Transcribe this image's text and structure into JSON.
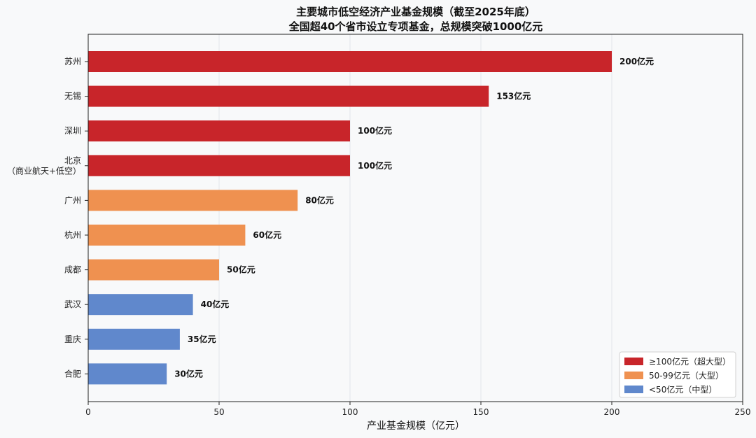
{
  "chart_data": {
    "type": "bar",
    "orientation": "horizontal",
    "title": "主要城市低空经济产业基金规模（截至2025年底）",
    "subtitle": "全国超40个省市设立专项基金，总规模突破1000亿元",
    "xlabel": "产业基金规模（亿元）",
    "ylabel": "",
    "xlim": [
      0,
      250
    ],
    "xticks": [
      0,
      50,
      100,
      150,
      200,
      250
    ],
    "grid": "vertical",
    "legend_position": "bottom-right",
    "categories": [
      "苏州",
      "无锡",
      "深圳",
      "北京\n（商业航天+低空）",
      "广州",
      "杭州",
      "成都",
      "武汉",
      "重庆",
      "合肥"
    ],
    "values": [
      200,
      153,
      100,
      100,
      80,
      60,
      50,
      40,
      35,
      30
    ],
    "value_labels": [
      "200亿元",
      "153亿元",
      "100亿元",
      "100亿元",
      "80亿元",
      "60亿元",
      "50亿元",
      "40亿元",
      "35亿元",
      "30亿元"
    ],
    "groups": [
      0,
      0,
      0,
      0,
      1,
      1,
      1,
      2,
      2,
      2
    ],
    "legend": [
      {
        "label": "≥100亿元（超大型）",
        "color": "#c8252a"
      },
      {
        "label": "50-99亿元（大型）",
        "color": "#ef9150"
      },
      {
        "label": "<50亿元（中型）",
        "color": "#6088cc"
      }
    ]
  }
}
